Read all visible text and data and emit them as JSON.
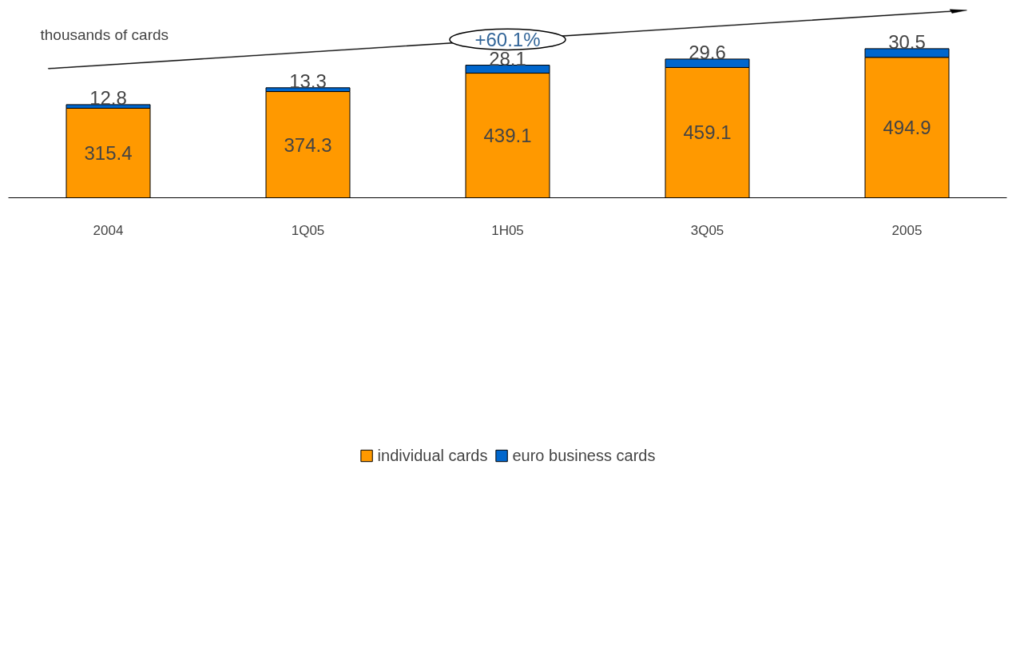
{
  "chart_data": {
    "type": "bar",
    "stacked": true,
    "categories": [
      "2004",
      "1Q05",
      "1H05",
      "3Q05",
      "2005"
    ],
    "series": [
      {
        "name": "individual cards",
        "color": "#ff9900",
        "values": [
          315.4,
          374.3,
          439.1,
          459.1,
          494.9
        ]
      },
      {
        "name": "euro business cards",
        "color": "#0066cc",
        "values": [
          12.8,
          13.3,
          28.1,
          29.6,
          30.5
        ]
      }
    ],
    "data_labels": true,
    "legend": "bottom",
    "grid": false,
    "tick_labels": "x",
    "annotations": [
      "thousands of cards",
      "+60.1%"
    ]
  }
}
